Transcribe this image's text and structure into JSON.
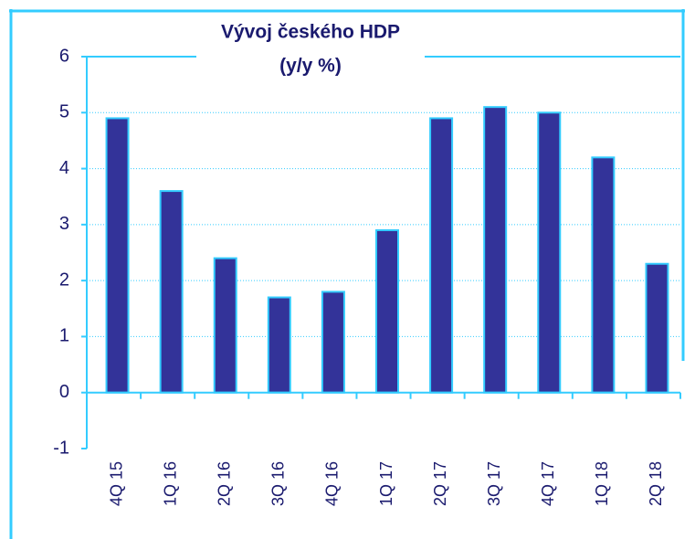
{
  "chart_data": {
    "type": "bar",
    "title": "Vývoj českého HDP",
    "subtitle": "(y/y %)",
    "categories": [
      "4Q 15",
      "1Q 16",
      "2Q 16",
      "3Q 16",
      "4Q 16",
      "1Q 17",
      "2Q 17",
      "3Q 17",
      "4Q 17",
      "1Q 18",
      "2Q 18"
    ],
    "values": [
      4.9,
      3.6,
      2.4,
      1.7,
      1.8,
      2.9,
      4.9,
      5.1,
      5.0,
      4.2,
      2.3
    ],
    "color": "#333399",
    "ylim": [
      -1,
      6
    ],
    "yticks": [
      -1,
      0,
      1,
      2,
      3,
      4,
      5,
      6
    ],
    "grid": true
  }
}
